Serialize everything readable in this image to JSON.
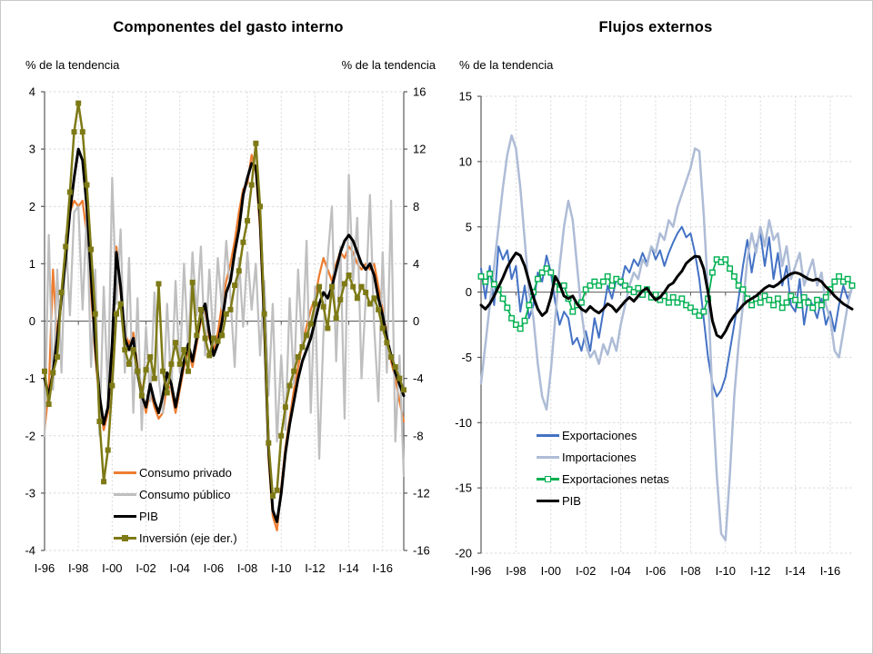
{
  "figure": {
    "background": "#FFFFFF",
    "border_color": "#C9C9C9"
  },
  "chart_data": [
    {
      "type": "line",
      "title": "Componentes del gasto interno",
      "unit_label_left": "% de la tendencia",
      "unit_label_right": "% de la tendencia",
      "x_tick_labels": [
        "I-96",
        "I-98",
        "I-00",
        "I-02",
        "I-04",
        "I-06",
        "I-08",
        "I-10",
        "I-12",
        "I-14",
        "I-16"
      ],
      "x_tick_every": 8,
      "n_points": 86,
      "grid": "dashed",
      "legend_position": "inside-bottom-left",
      "axes": {
        "left": {
          "min": -4,
          "max": 4,
          "step": 1
        },
        "right": {
          "min": -16,
          "max": 16,
          "step": 4
        }
      },
      "series": [
        {
          "name": "Consumo privado",
          "color": "#ED7D31",
          "axis": "left",
          "marker": "none",
          "width": 2.25,
          "values": [
            -1.9,
            -1.2,
            0.9,
            -0.4,
            0.5,
            1.3,
            1.9,
            2.1,
            2.0,
            2.1,
            1.5,
            0.5,
            -0.6,
            -1.4,
            -1.9,
            -1.6,
            -0.6,
            1.3,
            0.5,
            -0.2,
            -0.4,
            -0.2,
            -0.8,
            -1.2,
            -1.6,
            -1.2,
            -1.5,
            -1.7,
            -1.6,
            -1.1,
            -1.2,
            -1.6,
            -1.2,
            -0.8,
            -0.5,
            -0.8,
            -0.4,
            0.0,
            0.2,
            -0.3,
            -0.5,
            -0.2,
            0.3,
            0.7,
            1.0,
            1.4,
            1.9,
            2.3,
            2.4,
            2.9,
            2.6,
            1.6,
            -0.2,
            -2.4,
            -3.4,
            -3.65,
            -2.9,
            -2.2,
            -1.7,
            -1.2,
            -0.8,
            -0.4,
            -0.1,
            0.2,
            0.4,
            0.8,
            1.1,
            0.9,
            0.7,
            1.0,
            1.2,
            1.1,
            1.3,
            1.2,
            1.0,
            0.9,
            1.0,
            0.9,
            1.0,
            0.6,
            0.2,
            -0.2,
            -0.7,
            -1.0,
            -1.4,
            -1.75
          ]
        },
        {
          "name": "Consumo público",
          "color": "#BFBFBF",
          "axis": "left",
          "marker": "none",
          "width": 2.25,
          "values": [
            -2.0,
            1.5,
            -1.2,
            0.9,
            -0.9,
            1.5,
            0.1,
            1.9,
            2.0,
            0.2,
            1.9,
            -0.8,
            0.9,
            -2.0,
            0.6,
            -1.3,
            2.5,
            0.3,
            1.6,
            -0.9,
            1.1,
            -1.6,
            0.4,
            -1.9,
            -0.1,
            -1.4,
            0.5,
            -1.0,
            -1.6,
            0.3,
            -1.2,
            0.7,
            -0.9,
            1.0,
            -0.5,
            1.2,
            0.1,
            1.3,
            -0.6,
            0.9,
            -0.4,
            1.1,
            0.2,
            1.4,
            0.4,
            -0.8,
            1.1,
            -0.1,
            1.2,
            0.2,
            1.0,
            -0.6,
            0.7,
            -1.3,
            0.3,
            -2.1,
            -0.6,
            -1.9,
            0.4,
            -1.1,
            0.9,
            -0.5,
            1.4,
            -1.6,
            0.6,
            -2.4,
            -0.2,
            1.1,
            2.0,
            -0.7,
            1.3,
            -1.7,
            2.55,
            0.7,
            1.8,
            -1.0,
            0.4,
            2.2,
            -0.1,
            -1.4,
            1.2,
            -0.9,
            2.1,
            -2.1,
            -0.6,
            -2.7
          ]
        },
        {
          "name": "PIB",
          "color": "#000000",
          "axis": "left",
          "marker": "none",
          "width": 3,
          "values": [
            -1.0,
            -1.3,
            -0.9,
            -0.3,
            0.4,
            1.1,
            1.9,
            2.5,
            3.0,
            2.8,
            2.0,
            0.8,
            -0.4,
            -1.3,
            -1.8,
            -1.5,
            -0.4,
            1.2,
            0.6,
            -0.3,
            -0.5,
            -0.3,
            -0.9,
            -1.3,
            -1.5,
            -1.1,
            -1.4,
            -1.6,
            -1.3,
            -0.9,
            -1.1,
            -1.5,
            -1.1,
            -0.7,
            -0.4,
            -0.7,
            -0.3,
            0.1,
            0.3,
            -0.2,
            -0.6,
            -0.4,
            0.0,
            0.5,
            0.7,
            1.2,
            1.6,
            2.2,
            2.5,
            2.75,
            2.7,
            1.8,
            0.0,
            -2.2,
            -3.3,
            -3.5,
            -3.0,
            -2.3,
            -1.8,
            -1.4,
            -1.0,
            -0.7,
            -0.5,
            -0.3,
            0.0,
            0.3,
            0.5,
            0.4,
            0.6,
            0.9,
            1.2,
            1.4,
            1.5,
            1.4,
            1.2,
            1.0,
            0.9,
            1.0,
            0.8,
            0.4,
            0.1,
            -0.3,
            -0.6,
            -0.9,
            -1.1,
            -1.3
          ]
        },
        {
          "name": "Inversión (eje der.)",
          "color": "#7E7A16",
          "axis": "right",
          "marker": "square-filled",
          "width": 2.5,
          "values": [
            -3.5,
            -5.8,
            -3.6,
            -2.5,
            2.0,
            5.2,
            9.0,
            13.2,
            15.2,
            13.2,
            9.5,
            5.0,
            0.5,
            -7.0,
            -11.2,
            -9.0,
            -4.5,
            0.5,
            1.2,
            -2.0,
            -3.0,
            -2.0,
            -3.5,
            -5.2,
            -3.4,
            -2.5,
            -4.0,
            2.6,
            -3.5,
            -5.0,
            -3.0,
            -1.5,
            -3.0,
            -2.0,
            -3.5,
            2.7,
            -1.0,
            0.8,
            -1.2,
            -2.4,
            -1.2,
            -1.4,
            -1.0,
            0.5,
            0.8,
            2.5,
            3.5,
            5.5,
            7.0,
            9.5,
            12.4,
            8.0,
            0.5,
            -8.5,
            -12.2,
            -11.8,
            -8.0,
            -6.0,
            -4.5,
            -3.5,
            -2.5,
            -1.8,
            -1.0,
            -0.2,
            1.2,
            2.4,
            1.0,
            -0.5,
            2.4,
            0.2,
            1.5,
            2.6,
            3.2,
            2.4,
            1.6,
            2.4,
            2.0,
            1.2,
            1.6,
            0.8,
            -0.5,
            -1.5,
            -2.5,
            -3.2,
            -4.0,
            -4.8
          ]
        }
      ]
    },
    {
      "type": "line",
      "title": "Flujos externos",
      "unit_label_left": "% de la tendencia",
      "x_tick_labels": [
        "I-96",
        "I-98",
        "I-00",
        "I-02",
        "I-04",
        "I-06",
        "I-08",
        "I-10",
        "I-12",
        "I-14",
        "I-16"
      ],
      "x_tick_every": 8,
      "n_points": 86,
      "grid": "dashed",
      "legend_position": "inside-bottom-left",
      "axes": {
        "left": {
          "min": -20,
          "max": 15,
          "step": 5
        }
      },
      "series": [
        {
          "name": "Exportaciones",
          "color": "#4472C4",
          "axis": "left",
          "marker": "none",
          "width": 2,
          "values": [
            1.8,
            -0.5,
            2.0,
            -1.0,
            3.5,
            2.5,
            3.2,
            1.0,
            2.0,
            -1.5,
            0.5,
            -2.0,
            -1.0,
            1.5,
            0.8,
            2.8,
            1.5,
            -0.8,
            -2.5,
            -1.5,
            -2.0,
            -4.0,
            -3.5,
            -4.5,
            -3.0,
            -4.5,
            -2.0,
            -3.5,
            -1.5,
            0.5,
            -0.5,
            1.0,
            0.5,
            2.0,
            1.5,
            2.5,
            2.0,
            3.0,
            2.2,
            3.5,
            2.5,
            3.2,
            2.0,
            3.0,
            3.8,
            4.5,
            5.0,
            4.2,
            4.5,
            3.0,
            1.0,
            -2.0,
            -5.0,
            -7.0,
            -8.0,
            -7.5,
            -6.5,
            -4.5,
            -2.5,
            -0.5,
            2.0,
            4.0,
            1.5,
            3.5,
            4.5,
            2.0,
            4.2,
            1.0,
            3.0,
            0.5,
            2.0,
            -1.0,
            -1.5,
            1.0,
            -2.5,
            -0.5,
            -1.0,
            -2.0,
            -0.5,
            -2.5,
            -1.5,
            -3.0,
            -1.0,
            0.5,
            -0.5,
            0.3
          ]
        },
        {
          "name": "Importaciones",
          "color": "#AEBCD6",
          "axis": "left",
          "marker": "none",
          "width": 2.5,
          "values": [
            -7.0,
            -4.0,
            -1.0,
            2.0,
            5.0,
            8.0,
            10.5,
            12.0,
            11.0,
            8.0,
            4.0,
            0.0,
            -2.0,
            -5.5,
            -8.0,
            -9.0,
            -6.0,
            -2.0,
            2.0,
            5.0,
            7.0,
            5.5,
            2.0,
            -1.5,
            -4.0,
            -5.0,
            -4.5,
            -5.5,
            -4.0,
            -4.8,
            -3.5,
            -4.5,
            -2.5,
            -1.0,
            0.5,
            1.5,
            1.0,
            2.5,
            2.0,
            3.5,
            3.0,
            4.5,
            4.0,
            5.5,
            5.0,
            6.5,
            7.5,
            8.5,
            9.5,
            11.0,
            10.8,
            6.0,
            0.0,
            -8.0,
            -14.0,
            -18.5,
            -19.0,
            -14.0,
            -8.0,
            -4.0,
            -1.0,
            2.5,
            4.5,
            3.0,
            5.0,
            3.5,
            5.5,
            4.0,
            4.5,
            2.0,
            3.5,
            1.0,
            2.0,
            3.0,
            0.5,
            1.5,
            2.5,
            0.5,
            1.5,
            -1.0,
            -2.0,
            -4.5,
            -5.0,
            -3.0,
            -1.0,
            0.5
          ]
        },
        {
          "name": "Exportaciones netas",
          "color": "#00B050",
          "axis": "left",
          "marker": "square-hollow",
          "width": 1.75,
          "values": [
            1.2,
            0.8,
            1.4,
            0.6,
            0.2,
            -0.5,
            -1.2,
            -2.0,
            -2.5,
            -2.8,
            -2.2,
            -1.0,
            0.0,
            1.0,
            1.5,
            1.8,
            1.5,
            0.8,
            0.2,
            0.5,
            -0.5,
            -1.5,
            -1.0,
            -0.8,
            0.2,
            0.5,
            0.8,
            0.5,
            0.8,
            1.2,
            0.5,
            1.0,
            0.8,
            0.5,
            0.2,
            0.0,
            0.3,
            -0.2,
            0.2,
            -0.4,
            -0.2,
            -0.6,
            -0.3,
            -0.8,
            -0.4,
            -0.8,
            -0.5,
            -1.0,
            -1.2,
            -1.5,
            -1.8,
            -1.5,
            -0.5,
            1.5,
            2.5,
            2.3,
            2.5,
            1.8,
            1.2,
            0.5,
            0.2,
            -0.5,
            -1.0,
            -0.5,
            -0.8,
            -0.3,
            -0.6,
            -1.0,
            -0.5,
            -1.2,
            -0.8,
            -0.3,
            -0.6,
            -1.0,
            -0.4,
            -0.8,
            -1.2,
            -0.6,
            -1.0,
            -0.4,
            0.2,
            0.8,
            1.2,
            0.8,
            1.0,
            0.5
          ]
        },
        {
          "name": "PIB",
          "color": "#000000",
          "axis": "left",
          "marker": "none",
          "width": 3,
          "values": [
            -1.0,
            -1.3,
            -0.9,
            -0.3,
            0.4,
            1.1,
            1.9,
            2.5,
            3.0,
            2.8,
            2.0,
            0.8,
            -0.4,
            -1.3,
            -1.8,
            -1.5,
            -0.4,
            1.2,
            0.6,
            -0.3,
            -0.5,
            -0.3,
            -0.9,
            -1.3,
            -1.5,
            -1.1,
            -1.4,
            -1.6,
            -1.3,
            -0.9,
            -1.1,
            -1.5,
            -1.1,
            -0.7,
            -0.4,
            -0.7,
            -0.3,
            0.1,
            0.3,
            -0.2,
            -0.6,
            -0.4,
            0.0,
            0.5,
            0.7,
            1.2,
            1.6,
            2.2,
            2.5,
            2.75,
            2.7,
            1.8,
            0.0,
            -2.2,
            -3.3,
            -3.5,
            -3.0,
            -2.3,
            -1.8,
            -1.4,
            -1.0,
            -0.7,
            -0.5,
            -0.3,
            0.0,
            0.3,
            0.5,
            0.4,
            0.6,
            0.9,
            1.2,
            1.4,
            1.5,
            1.4,
            1.2,
            1.0,
            0.9,
            1.0,
            0.8,
            0.4,
            0.1,
            -0.3,
            -0.6,
            -0.9,
            -1.1,
            -1.3
          ]
        }
      ]
    }
  ],
  "style": {
    "gridline_color": "#D9D9D9",
    "axis_color": "#595959",
    "zero_line_color": "#595959",
    "tick_label_color": "#000000"
  }
}
